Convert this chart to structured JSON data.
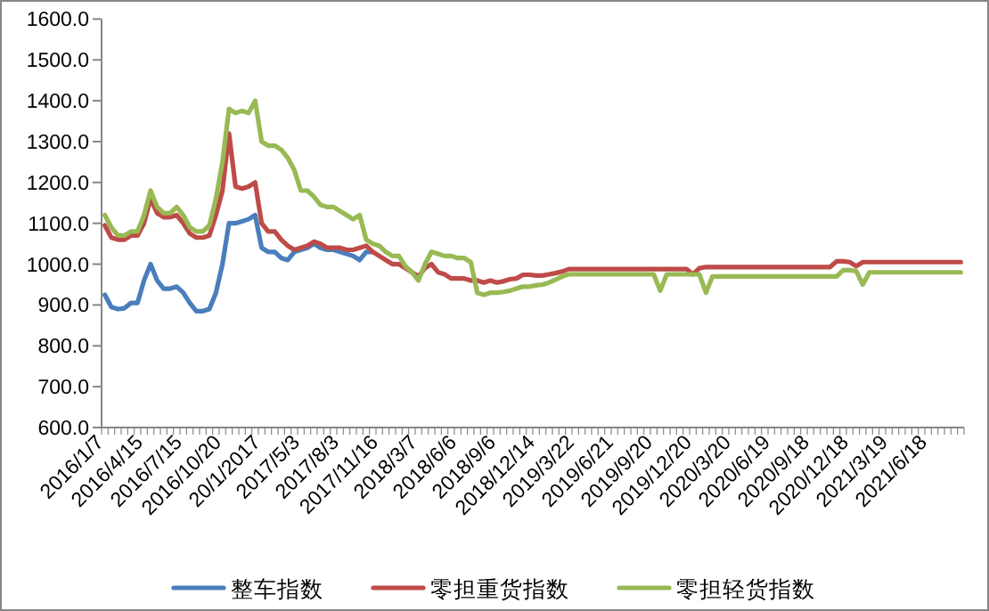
{
  "chart_data": {
    "type": "line",
    "categories": [
      "2016/1/7",
      null,
      null,
      null,
      null,
      null,
      "2016/4/15",
      null,
      null,
      null,
      null,
      null,
      "2016/7/15",
      null,
      null,
      null,
      null,
      null,
      "2016/10/20",
      null,
      null,
      null,
      null,
      null,
      "20/1/2017",
      null,
      null,
      null,
      null,
      null,
      "2017/5/3",
      null,
      null,
      null,
      null,
      null,
      "2017/8/3",
      null,
      null,
      null,
      null,
      null,
      "2017/11/16",
      null,
      null,
      null,
      null,
      null,
      "2018/3/7",
      null,
      null,
      null,
      null,
      null,
      "2018/6/6",
      null,
      null,
      null,
      null,
      null,
      "2018/9/6",
      null,
      null,
      null,
      null,
      null,
      "2018/12/14",
      null,
      null,
      null,
      null,
      null,
      "2019/3/22",
      null,
      null,
      null,
      null,
      null,
      "2019/6/21",
      null,
      null,
      null,
      null,
      null,
      "2019/9/20",
      null,
      null,
      null,
      null,
      null,
      "2019/12/20",
      null,
      null,
      null,
      null,
      null,
      "2020/3/20",
      null,
      null,
      null,
      null,
      null,
      "2020/6/19",
      null,
      null,
      null,
      null,
      null,
      "2020/9/18",
      null,
      null,
      null,
      null,
      null,
      "2020/12/18",
      null,
      null,
      null,
      null,
      null,
      "2021/3/19",
      null,
      null,
      null,
      null,
      null,
      "2021/6/18",
      null,
      null,
      null,
      null,
      null
    ],
    "series": [
      {
        "name": "整车指数",
        "color": "#4a7ebb",
        "values": [
          925,
          895,
          890,
          892,
          905,
          905,
          960,
          1000,
          960,
          940,
          940,
          945,
          930,
          905,
          885,
          885,
          890,
          930,
          1000,
          1100,
          1100,
          1105,
          1110,
          1120,
          1040,
          1030,
          1030,
          1015,
          1010,
          1030,
          1035,
          1040,
          1050,
          1040,
          1035,
          1035,
          1030,
          1025,
          1020,
          1010,
          1030,
          1030,
          null,
          null,
          null,
          null,
          null,
          null,
          null,
          null,
          null,
          null,
          null,
          null,
          null,
          null,
          null,
          null,
          null,
          null,
          null,
          null,
          null,
          null,
          null,
          null,
          null,
          null,
          null,
          null,
          null,
          null,
          null,
          null,
          null,
          null,
          null,
          null,
          null,
          null,
          null,
          null,
          null,
          null,
          null,
          null,
          null,
          null,
          null,
          null,
          null,
          null,
          null,
          null,
          null,
          null,
          null,
          null,
          null,
          null,
          null,
          null,
          null,
          null,
          null,
          null,
          null,
          null,
          null,
          null,
          null,
          null,
          null,
          null,
          null,
          null,
          null,
          null,
          null,
          null,
          null,
          null,
          null,
          null,
          null,
          null,
          null,
          null,
          null,
          null,
          null,
          null
        ]
      },
      {
        "name": "零担重货指数",
        "color": "#be4b48",
        "values": [
          1095,
          1065,
          1060,
          1060,
          1070,
          1070,
          1100,
          1160,
          1125,
          1115,
          1115,
          1120,
          1100,
          1075,
          1065,
          1065,
          1070,
          1120,
          1180,
          1320,
          1190,
          1185,
          1190,
          1200,
          1100,
          1080,
          1080,
          1060,
          1045,
          1035,
          1040,
          1045,
          1055,
          1050,
          1040,
          1040,
          1040,
          1035,
          1035,
          1040,
          1045,
          1030,
          1020,
          1010,
          1000,
          1000,
          990,
          980,
          970,
          990,
          1000,
          980,
          975,
          965,
          965,
          965,
          960,
          960,
          955,
          960,
          955,
          958,
          963,
          965,
          974,
          974,
          972,
          972,
          975,
          978,
          982,
          988,
          988,
          988,
          988,
          988,
          988,
          988,
          988,
          988,
          988,
          988,
          988,
          988,
          988,
          988,
          988,
          988,
          988,
          988,
          975,
          990,
          993,
          993,
          993,
          993,
          993,
          993,
          993,
          993,
          993,
          993,
          993,
          993,
          993,
          993,
          993,
          993,
          993,
          993,
          993,
          993,
          1007,
          1007,
          1005,
          995,
          1005,
          1005,
          1005,
          1005,
          1005,
          1005,
          1005,
          1005,
          1005,
          1005,
          1005,
          1005,
          1005,
          1005,
          1005,
          1005
        ]
      },
      {
        "name": "零担轻货指数",
        "color": "#98b954",
        "values": [
          1120,
          1090,
          1070,
          1070,
          1080,
          1080,
          1120,
          1180,
          1140,
          1125,
          1125,
          1140,
          1120,
          1090,
          1080,
          1080,
          1095,
          1160,
          1250,
          1380,
          1370,
          1375,
          1370,
          1400,
          1300,
          1290,
          1290,
          1280,
          1260,
          1230,
          1180,
          1180,
          1165,
          1145,
          1140,
          1140,
          1130,
          1120,
          1110,
          1120,
          1060,
          1050,
          1045,
          1030,
          1020,
          1020,
          995,
          980,
          960,
          1000,
          1030,
          1025,
          1020,
          1020,
          1015,
          1015,
          1005,
          930,
          925,
          930,
          930,
          932,
          935,
          940,
          945,
          945,
          948,
          950,
          955,
          962,
          970,
          975,
          975,
          975,
          975,
          975,
          975,
          975,
          975,
          975,
          975,
          975,
          975,
          975,
          975,
          935,
          975,
          975,
          975,
          975,
          975,
          975,
          930,
          970,
          970,
          970,
          970,
          970,
          970,
          970,
          970,
          970,
          970,
          970,
          970,
          970,
          970,
          970,
          970,
          970,
          970,
          970,
          970,
          985,
          985,
          983,
          950,
          980,
          980,
          980,
          980,
          980,
          980,
          980,
          980,
          980,
          980,
          980,
          980,
          980,
          980,
          980
        ]
      }
    ],
    "ylim": [
      600,
      1600
    ],
    "yticks": [
      {
        "value": 600,
        "label": "600.0"
      },
      {
        "value": 700,
        "label": "700.0"
      },
      {
        "value": 800,
        "label": "800.0"
      },
      {
        "value": 900,
        "label": "900.0"
      },
      {
        "value": 1000,
        "label": "1000.0"
      },
      {
        "value": 1100,
        "label": "1100.0"
      },
      {
        "value": 1200,
        "label": "1200.0"
      },
      {
        "value": 1300,
        "label": "1300.0"
      },
      {
        "value": 1400,
        "label": "1400.0"
      },
      {
        "value": 1500,
        "label": "1500.0"
      },
      {
        "value": 1600,
        "label": "1600.0"
      }
    ],
    "legend": "bottom"
  }
}
